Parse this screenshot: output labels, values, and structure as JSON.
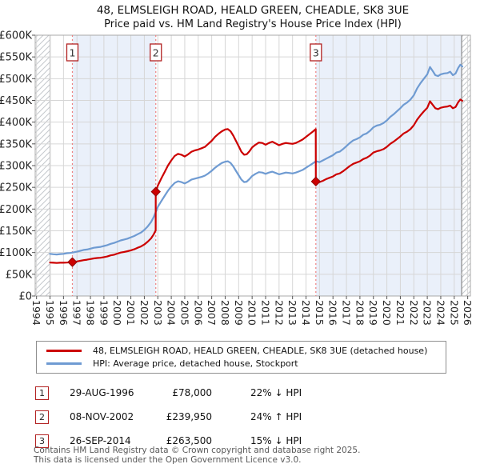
{
  "title": {
    "line1": "48, ELMSLEIGH ROAD, HEALD GREEN, CHEADLE, SK8 3UE",
    "line2": "Price paid vs. HM Land Registry's House Price Index (HPI)"
  },
  "legend": [
    {
      "label": "48, ELMSLEIGH ROAD, HEALD GREEN, CHEADLE, SK8 3UE (detached house)",
      "color": "#cc0000"
    },
    {
      "label": "HPI: Average price, detached house, Stockport",
      "color": "#6f9bd2"
    }
  ],
  "transactions": [
    {
      "num": "1",
      "date": "29-AUG-1996",
      "price": "£78,000",
      "delta": "22% ↓ HPI"
    },
    {
      "num": "2",
      "date": "08-NOV-2002",
      "price": "£239,950",
      "delta": "24% ↑ HPI"
    },
    {
      "num": "3",
      "date": "26-SEP-2014",
      "price": "£263,500",
      "delta": "15% ↓ HPI"
    }
  ],
  "footer": {
    "line1": "Contains HM Land Registry data © Crown copyright and database right 2025.",
    "line2": "This data is licensed under the Open Government Licence v3.0."
  },
  "chart_data": {
    "type": "line",
    "title": "48, ELMSLEIGH ROAD, HEALD GREEN, CHEADLE, SK8 3UE — Price paid vs. HPI",
    "unit": "thousands of pounds (£K)",
    "x_axis": {
      "range": [
        1993.9,
        2026.2
      ],
      "ticks": [
        1994,
        1995,
        1996,
        1997,
        1998,
        1999,
        2000,
        2001,
        2002,
        2003,
        2004,
        2005,
        2006,
        2007,
        2008,
        2009,
        2010,
        2011,
        2012,
        2013,
        2014,
        2015,
        2016,
        2017,
        2018,
        2019,
        2020,
        2021,
        2022,
        2023,
        2024,
        2025,
        2026
      ]
    },
    "y_axis": {
      "range_k": [
        0,
        600
      ],
      "tick_values_k": [
        0,
        50,
        100,
        150,
        200,
        250,
        300,
        350,
        400,
        450,
        500,
        550,
        600
      ],
      "tick_labels": [
        "£0",
        "£50K",
        "£100K",
        "£150K",
        "£200K",
        "£250K",
        "£300K",
        "£350K",
        "£400K",
        "£450K",
        "£500K",
        "£550K",
        "£600K"
      ]
    },
    "grid": true,
    "legend_position": "bottom",
    "shaded_bands": [
      [
        1996.66,
        2002.85
      ],
      [
        2014.73,
        2025.55
      ]
    ],
    "hatched_bands": [
      [
        1993.9,
        1995.0
      ],
      [
        2025.55,
        2026.2
      ]
    ],
    "sales": [
      {
        "label": "1",
        "x": 1996.66,
        "price_k": 78,
        "date": "29-AUG-1996",
        "vs_hpi": "22% below HPI"
      },
      {
        "label": "2",
        "x": 2002.85,
        "price_k": 239.95,
        "date": "08-NOV-2002",
        "vs_hpi": "24% above HPI"
      },
      {
        "label": "3",
        "x": 2014.73,
        "price_k": 263.5,
        "date": "26-SEP-2014",
        "vs_hpi": "15% below HPI"
      }
    ],
    "series": [
      {
        "name": "HPI: Average price, detached house, Stockport",
        "color": "#6f9bd2",
        "points": [
          [
            1995,
            97
          ],
          [
            1995.25,
            96
          ],
          [
            1995.5,
            95.5
          ],
          [
            1995.75,
            96.5
          ],
          [
            1996,
            97
          ],
          [
            1996.25,
            98.5
          ],
          [
            1996.5,
            99
          ],
          [
            1996.66,
            100
          ],
          [
            1997,
            102
          ],
          [
            1997.25,
            104
          ],
          [
            1997.5,
            106
          ],
          [
            1997.75,
            107
          ],
          [
            1998,
            109
          ],
          [
            1998.25,
            111
          ],
          [
            1998.5,
            112
          ],
          [
            1998.75,
            113
          ],
          [
            1999,
            115
          ],
          [
            1999.25,
            117
          ],
          [
            1999.5,
            120
          ],
          [
            1999.75,
            122
          ],
          [
            2000,
            125
          ],
          [
            2000.25,
            128
          ],
          [
            2000.5,
            130
          ],
          [
            2000.75,
            132
          ],
          [
            2001,
            135
          ],
          [
            2001.25,
            138
          ],
          [
            2001.5,
            142
          ],
          [
            2001.75,
            146
          ],
          [
            2002,
            152
          ],
          [
            2002.25,
            160
          ],
          [
            2002.5,
            170
          ],
          [
            2002.7,
            182
          ],
          [
            2002.85,
            193.5
          ],
          [
            2003,
            205
          ],
          [
            2003.25,
            218
          ],
          [
            2003.5,
            230
          ],
          [
            2003.75,
            242
          ],
          [
            2004,
            252
          ],
          [
            2004.25,
            260
          ],
          [
            2004.5,
            264
          ],
          [
            2004.75,
            262
          ],
          [
            2005,
            259
          ],
          [
            2005.25,
            263
          ],
          [
            2005.5,
            268
          ],
          [
            2005.75,
            270
          ],
          [
            2006,
            272
          ],
          [
            2006.25,
            274
          ],
          [
            2006.5,
            277
          ],
          [
            2006.75,
            282
          ],
          [
            2007,
            288
          ],
          [
            2007.25,
            295
          ],
          [
            2007.5,
            301
          ],
          [
            2007.75,
            306
          ],
          [
            2008,
            309
          ],
          [
            2008.2,
            310
          ],
          [
            2008.4,
            306
          ],
          [
            2008.6,
            298
          ],
          [
            2008.8,
            288
          ],
          [
            2009,
            278
          ],
          [
            2009.2,
            268
          ],
          [
            2009.4,
            262
          ],
          [
            2009.6,
            263
          ],
          [
            2009.8,
            269
          ],
          [
            2010,
            276
          ],
          [
            2010.25,
            281
          ],
          [
            2010.5,
            285
          ],
          [
            2010.75,
            284
          ],
          [
            2011,
            281
          ],
          [
            2011.25,
            284
          ],
          [
            2011.5,
            286
          ],
          [
            2011.75,
            283
          ],
          [
            2012,
            280
          ],
          [
            2012.25,
            282
          ],
          [
            2012.5,
            284
          ],
          [
            2012.75,
            283
          ],
          [
            2013,
            282
          ],
          [
            2013.25,
            284
          ],
          [
            2013.5,
            287
          ],
          [
            2013.75,
            290
          ],
          [
            2014,
            295
          ],
          [
            2014.25,
            300
          ],
          [
            2014.5,
            305
          ],
          [
            2014.73,
            310
          ],
          [
            2015,
            308
          ],
          [
            2015.25,
            312
          ],
          [
            2015.5,
            316
          ],
          [
            2015.75,
            320
          ],
          [
            2016,
            324
          ],
          [
            2016.25,
            330
          ],
          [
            2016.5,
            332
          ],
          [
            2016.75,
            338
          ],
          [
            2017,
            345
          ],
          [
            2017.25,
            352
          ],
          [
            2017.5,
            358
          ],
          [
            2017.75,
            361
          ],
          [
            2018,
            365
          ],
          [
            2018.25,
            371
          ],
          [
            2018.5,
            374
          ],
          [
            2018.75,
            380
          ],
          [
            2019,
            388
          ],
          [
            2019.25,
            392
          ],
          [
            2019.5,
            394
          ],
          [
            2019.75,
            398
          ],
          [
            2020,
            404
          ],
          [
            2020.25,
            412
          ],
          [
            2020.5,
            418
          ],
          [
            2020.75,
            425
          ],
          [
            2021,
            432
          ],
          [
            2021.25,
            440
          ],
          [
            2021.5,
            445
          ],
          [
            2021.75,
            452
          ],
          [
            2022,
            462
          ],
          [
            2022.25,
            478
          ],
          [
            2022.5,
            490
          ],
          [
            2022.75,
            500
          ],
          [
            2023,
            510
          ],
          [
            2023.2,
            527
          ],
          [
            2023.4,
            518
          ],
          [
            2023.6,
            508
          ],
          [
            2023.8,
            506
          ],
          [
            2024,
            510
          ],
          [
            2024.25,
            512
          ],
          [
            2024.5,
            513
          ],
          [
            2024.7,
            516
          ],
          [
            2024.9,
            508
          ],
          [
            2025.1,
            512
          ],
          [
            2025.3,
            525
          ],
          [
            2025.45,
            532
          ],
          [
            2025.6,
            528
          ]
        ]
      },
      {
        "name": "48, ELMSLEIGH ROAD, HEALD GREEN, CHEADLE, SK8 3UE (detached house)",
        "color": "#cc0000",
        "points": [
          [
            1995,
            77
          ],
          [
            1995.25,
            76.5
          ],
          [
            1995.5,
            76
          ],
          [
            1995.75,
            76.5
          ],
          [
            1996,
            76.5
          ],
          [
            1996.25,
            77
          ],
          [
            1996.5,
            77.5
          ],
          [
            1996.66,
            78
          ],
          [
            1997,
            79.5
          ],
          [
            1997.25,
            81
          ],
          [
            1997.5,
            82.5
          ],
          [
            1997.75,
            83.5
          ],
          [
            1998,
            85
          ],
          [
            1998.25,
            86.5
          ],
          [
            1998.5,
            87.5
          ],
          [
            1998.75,
            88
          ],
          [
            1999,
            89.5
          ],
          [
            1999.25,
            91
          ],
          [
            1999.5,
            93.5
          ],
          [
            1999.75,
            95
          ],
          [
            2000,
            97.5
          ],
          [
            2000.25,
            100
          ],
          [
            2000.5,
            101.5
          ],
          [
            2000.75,
            103
          ],
          [
            2001,
            105
          ],
          [
            2001.25,
            107.5
          ],
          [
            2001.5,
            111
          ],
          [
            2001.75,
            114
          ],
          [
            2002,
            118.5
          ],
          [
            2002.25,
            125
          ],
          [
            2002.5,
            132.5
          ],
          [
            2002.7,
            142
          ],
          [
            2002.84,
            151
          ],
          [
            2002.85,
            239.95
          ],
          [
            2003,
            254
          ],
          [
            2003.25,
            270
          ],
          [
            2003.5,
            285
          ],
          [
            2003.75,
            300
          ],
          [
            2004,
            312
          ],
          [
            2004.25,
            322
          ],
          [
            2004.5,
            327
          ],
          [
            2004.75,
            325
          ],
          [
            2005,
            321
          ],
          [
            2005.25,
            326
          ],
          [
            2005.5,
            332
          ],
          [
            2005.75,
            335
          ],
          [
            2006,
            337
          ],
          [
            2006.25,
            340
          ],
          [
            2006.5,
            343
          ],
          [
            2006.75,
            350
          ],
          [
            2007,
            357
          ],
          [
            2007.25,
            366
          ],
          [
            2007.5,
            373
          ],
          [
            2007.75,
            379
          ],
          [
            2008,
            383
          ],
          [
            2008.2,
            384
          ],
          [
            2008.4,
            379
          ],
          [
            2008.6,
            369
          ],
          [
            2008.8,
            357
          ],
          [
            2009,
            345
          ],
          [
            2009.2,
            332
          ],
          [
            2009.4,
            325
          ],
          [
            2009.6,
            326
          ],
          [
            2009.8,
            333
          ],
          [
            2010,
            342
          ],
          [
            2010.25,
            348
          ],
          [
            2010.5,
            353
          ],
          [
            2010.75,
            352
          ],
          [
            2011,
            348
          ],
          [
            2011.25,
            352
          ],
          [
            2011.5,
            355
          ],
          [
            2011.75,
            351
          ],
          [
            2012,
            347
          ],
          [
            2012.25,
            350
          ],
          [
            2012.5,
            352
          ],
          [
            2012.75,
            351
          ],
          [
            2013,
            350
          ],
          [
            2013.25,
            352
          ],
          [
            2013.5,
            356
          ],
          [
            2013.75,
            360
          ],
          [
            2014,
            366
          ],
          [
            2014.25,
            372
          ],
          [
            2014.5,
            378
          ],
          [
            2014.72,
            384
          ],
          [
            2014.73,
            263.5
          ],
          [
            2015,
            262
          ],
          [
            2015.25,
            265
          ],
          [
            2015.5,
            269
          ],
          [
            2015.75,
            272
          ],
          [
            2016,
            275
          ],
          [
            2016.25,
            280
          ],
          [
            2016.5,
            282
          ],
          [
            2016.75,
            287
          ],
          [
            2017,
            293
          ],
          [
            2017.25,
            299
          ],
          [
            2017.5,
            304
          ],
          [
            2017.75,
            307
          ],
          [
            2018,
            310
          ],
          [
            2018.25,
            315
          ],
          [
            2018.5,
            318
          ],
          [
            2018.75,
            323
          ],
          [
            2019,
            330
          ],
          [
            2019.25,
            333
          ],
          [
            2019.5,
            335
          ],
          [
            2019.75,
            338
          ],
          [
            2020,
            343
          ],
          [
            2020.25,
            350
          ],
          [
            2020.5,
            355
          ],
          [
            2020.75,
            361
          ],
          [
            2021,
            367
          ],
          [
            2021.25,
            374
          ],
          [
            2021.5,
            378
          ],
          [
            2021.75,
            384
          ],
          [
            2022,
            393
          ],
          [
            2022.25,
            406
          ],
          [
            2022.5,
            416
          ],
          [
            2022.75,
            425
          ],
          [
            2023,
            433
          ],
          [
            2023.2,
            448
          ],
          [
            2023.4,
            440
          ],
          [
            2023.6,
            432
          ],
          [
            2023.8,
            430
          ],
          [
            2024,
            433
          ],
          [
            2024.25,
            435
          ],
          [
            2024.5,
            436
          ],
          [
            2024.7,
            438
          ],
          [
            2024.9,
            432
          ],
          [
            2025.1,
            435
          ],
          [
            2025.3,
            446
          ],
          [
            2025.45,
            452
          ],
          [
            2025.6,
            449
          ]
        ]
      }
    ],
    "colors": {
      "price_line": "#cc0000",
      "hpi_line": "#6f9bd2",
      "band": "#eaf0fa",
      "grid": "#d6d6d6",
      "plot_border": "#a8a8a8",
      "sale_dashed_line": "#ef8080",
      "sale_box_border": "#b22222",
      "marker_fill": "#cc0000",
      "marker_stroke": "#8f0000",
      "hatch_line": "#c4c8cc",
      "hatch_edge": "#8f8f8f",
      "tick_text": "#262626"
    }
  }
}
